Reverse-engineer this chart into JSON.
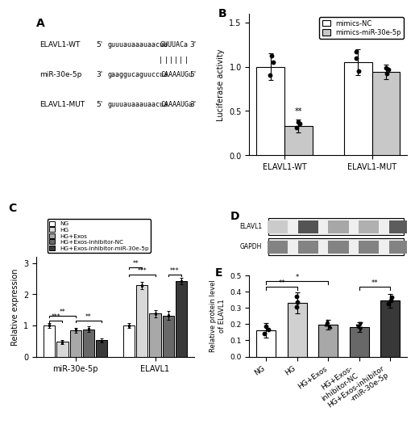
{
  "panel_B": {
    "groups": [
      "ELAVL1-WT",
      "ELAVL1-MUT"
    ],
    "mimics_NC": [
      1.0,
      1.05
    ],
    "mimics_miR": [
      0.33,
      0.94
    ],
    "mimics_NC_err": [
      0.15,
      0.15
    ],
    "mimics_miR_err": [
      0.07,
      0.08
    ],
    "ylabel": "Luciferase activity",
    "ylim": [
      0,
      1.6
    ],
    "yticks": [
      0.0,
      0.5,
      1.0,
      1.5
    ],
    "color_NC": "#ffffff",
    "color_miR": "#c8c8c8",
    "label_NC": "mimics-NC",
    "label_miR": "mimics-miR-30e-5p"
  },
  "panel_C": {
    "groups": [
      "miR-30e-5p",
      "ELAVL1"
    ],
    "NG": [
      1.0,
      1.0
    ],
    "HG": [
      0.47,
      2.28
    ],
    "HG_Exos": [
      0.85,
      1.38
    ],
    "HG_inhibitor_NC": [
      0.88,
      1.32
    ],
    "HG_inhibitor_miR": [
      0.52,
      2.42
    ],
    "NG_err": [
      0.07,
      0.07
    ],
    "HG_err": [
      0.07,
      0.12
    ],
    "HG_Exos_err": [
      0.08,
      0.12
    ],
    "HG_inhibitor_NC_err": [
      0.1,
      0.15
    ],
    "HG_inhibitor_miR_err": [
      0.07,
      0.1
    ],
    "ylabel": "Relative expression",
    "ylim": [
      0,
      3.2
    ],
    "yticks": [
      0,
      1,
      2,
      3
    ],
    "color_NG": "#ffffff",
    "color_HG": "#d8d8d8",
    "color_HG_Exos": "#a8a8a8",
    "color_inhibitor_NC": "#686868",
    "color_inhibitor_miR": "#383838",
    "label_NG": "NG",
    "label_HG": "HG",
    "label_HG_Exos": "HG+Exos",
    "label_inhibitor_NC": "HG+Exos-inhibitor-NC",
    "label_inhibitor_miR": "HG+Exos-inhibitor-miR-30e-5p"
  },
  "panel_E": {
    "values": [
      0.162,
      0.33,
      0.198,
      0.183,
      0.343
    ],
    "errors": [
      0.045,
      0.065,
      0.03,
      0.03,
      0.04
    ],
    "ylabel": "Relative protein level\nof ELAVL1",
    "ylim": [
      0,
      0.5
    ],
    "yticks": [
      0.0,
      0.1,
      0.2,
      0.3,
      0.4,
      0.5
    ],
    "colors": [
      "#ffffff",
      "#d0d0d0",
      "#a8a8a8",
      "#686868",
      "#383838"
    ],
    "xlabels": [
      "NG",
      "HG",
      "HG+Exos",
      "HG+Exos-\ninhibitor-NC",
      "HG+Exos-inhibitor\n-miR-30e-5p"
    ]
  },
  "panel_D": {
    "elavl1_intensities": [
      0.25,
      0.82,
      0.42,
      0.38,
      0.78
    ],
    "gapdh_intensities": [
      0.75,
      0.75,
      0.75,
      0.75,
      0.75
    ]
  }
}
